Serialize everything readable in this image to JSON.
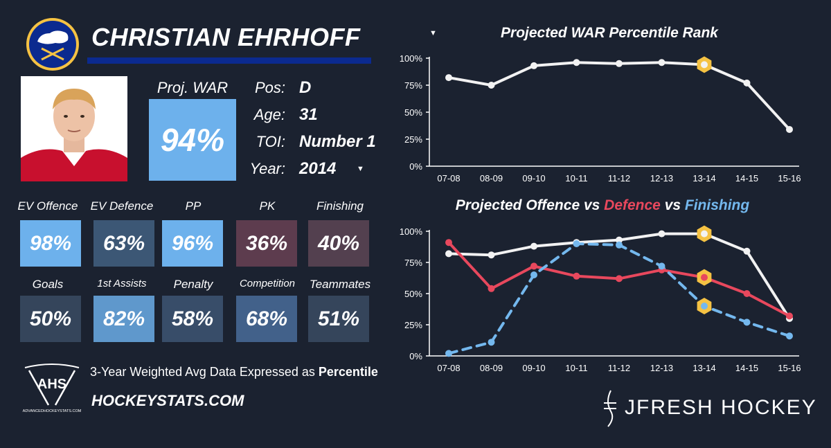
{
  "player": {
    "name": "CHRISTIAN EHRHOFF",
    "proj_war_label": "Proj. WAR %",
    "proj_war_value": "94%",
    "info": [
      {
        "label": "Pos:",
        "value": "D"
      },
      {
        "label": "Age:",
        "value": "31"
      },
      {
        "label": "TOI:",
        "value": "Number 1"
      },
      {
        "label": "Year:",
        "value": "2014"
      }
    ]
  },
  "stats": {
    "row1": [
      {
        "label": "EV Offence",
        "value": "98%",
        "color": "#6db1ec"
      },
      {
        "label": "EV Defence",
        "value": "63%",
        "color": "#3c5775"
      },
      {
        "label": "PP",
        "value": "96%",
        "color": "#6db1ec"
      },
      {
        "label": "PK",
        "value": "36%",
        "color": "#5d3c4e"
      },
      {
        "label": "Finishing",
        "value": "40%",
        "color": "#53404f"
      }
    ],
    "row2": [
      {
        "label": "Goals",
        "value": "50%",
        "color": "#35455b"
      },
      {
        "label": "1st Assists",
        "value": "82%",
        "color": "#5f98cc"
      },
      {
        "label": "Penalty",
        "value": "58%",
        "color": "#384d69"
      },
      {
        "label": "Competition",
        "value": "68%",
        "color": "#42618a"
      },
      {
        "label": "Teammates",
        "value": "51%",
        "color": "#35455b"
      }
    ]
  },
  "footer": {
    "note_prefix": "3-Year Weighted Avg Data Expressed as",
    "note_bold": "Percentile",
    "site": "HOCKEYSTATS.COM",
    "ahs_logo_text": "AHS",
    "ahs_sub": "ADVANCEDHOCKEYSTATS.COM",
    "brand": "JFRESH HOCKEY"
  },
  "colors": {
    "white_line": "#f2f2f2",
    "defence": "#e8485d",
    "finishing": "#74b8ee",
    "highlight": "#f5c243",
    "war_box": "#6db1ec"
  },
  "chart_data": [
    {
      "type": "line",
      "title": "Projected WAR Percentile Rank",
      "categories": [
        "07-08",
        "08-09",
        "09-10",
        "10-11",
        "11-12",
        "12-13",
        "13-14",
        "14-15",
        "15-16"
      ],
      "yticks": [
        "100%",
        "75%",
        "50%",
        "25%",
        "0%"
      ],
      "ylim": [
        0,
        100
      ],
      "series": [
        {
          "name": "WAR",
          "values": [
            82,
            75,
            93,
            96,
            95,
            96,
            94,
            77,
            34
          ],
          "color": "#f2f2f2",
          "dashed": false
        }
      ],
      "highlight_index": 6
    },
    {
      "type": "line",
      "title_parts": [
        {
          "text": "Projected Offence",
          "color": "#ffffff"
        },
        {
          "text": " vs ",
          "color": "#ffffff"
        },
        {
          "text": "Defence",
          "color": "#e8485d"
        },
        {
          "text": " vs ",
          "color": "#ffffff"
        },
        {
          "text": "Finishing",
          "color": "#74b8ee"
        }
      ],
      "categories": [
        "07-08",
        "08-09",
        "09-10",
        "10-11",
        "11-12",
        "12-13",
        "13-14",
        "14-15",
        "15-16"
      ],
      "yticks": [
        "100%",
        "75%",
        "50%",
        "25%",
        "0%"
      ],
      "ylim": [
        0,
        100
      ],
      "series": [
        {
          "name": "Offence",
          "values": [
            82,
            81,
            88,
            91,
            93,
            98,
            98,
            84,
            30
          ],
          "color": "#f2f2f2",
          "dashed": false
        },
        {
          "name": "Defence",
          "values": [
            91,
            54,
            72,
            64,
            62,
            69,
            63,
            50,
            32
          ],
          "color": "#e8485d",
          "dashed": false
        },
        {
          "name": "Finishing",
          "values": [
            2,
            11,
            65,
            90,
            89,
            72,
            40,
            27,
            16
          ],
          "color": "#74b8ee",
          "dashed": true
        }
      ],
      "highlight_index": 6
    }
  ]
}
